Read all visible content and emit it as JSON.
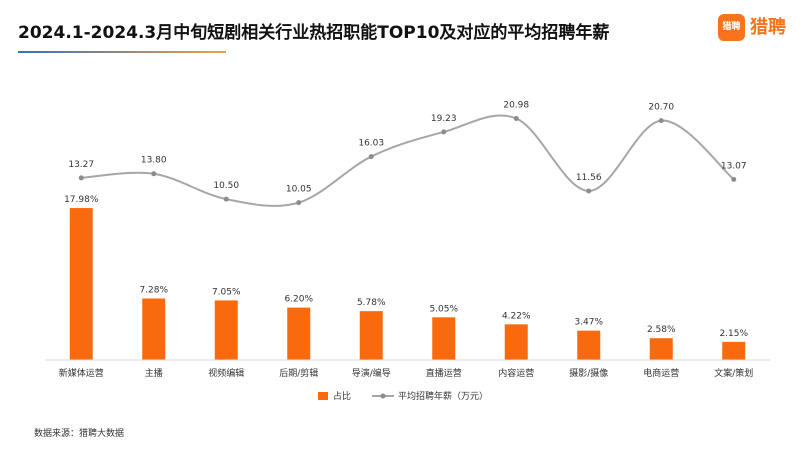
{
  "title": "2024.1-2024.3月中旬短剧相关行业热招职能TOP10及对应的平均招聘年薪",
  "logo": {
    "badge": "猎聘",
    "text": "猎聘",
    "color": "#f7731c"
  },
  "source": "数据来源：猎聘大数据",
  "chart_data": {
    "type": "bar",
    "categories": [
      "新媒体运营",
      "主播",
      "视频编辑",
      "后期/剪辑",
      "导演/编导",
      "直播运营",
      "内容运营",
      "摄影/摄像",
      "电商运营",
      "文案/策划"
    ],
    "series": [
      {
        "name": "占比",
        "type": "bar",
        "color": "#f86a0d",
        "values": [
          17.98,
          7.28,
          7.05,
          6.2,
          5.78,
          5.05,
          4.22,
          3.47,
          2.58,
          2.15
        ],
        "labels": [
          "17.98%",
          "7.28%",
          "7.05%",
          "6.20%",
          "5.78%",
          "5.05%",
          "4.22%",
          "3.47%",
          "2.58%",
          "2.15%"
        ]
      },
      {
        "name": "平均招聘年薪（万元）",
        "type": "line",
        "color": "#a6a6a6",
        "values": [
          13.27,
          13.8,
          10.5,
          10.05,
          16.03,
          19.23,
          20.98,
          11.56,
          20.7,
          13.07
        ],
        "labels": [
          "13.27",
          "13.80",
          "10.50",
          "10.05",
          "16.03",
          "19.23",
          "20.98",
          "11.56",
          "20.70",
          "13.07"
        ]
      }
    ],
    "legend_position": "bottom",
    "grid": false
  }
}
